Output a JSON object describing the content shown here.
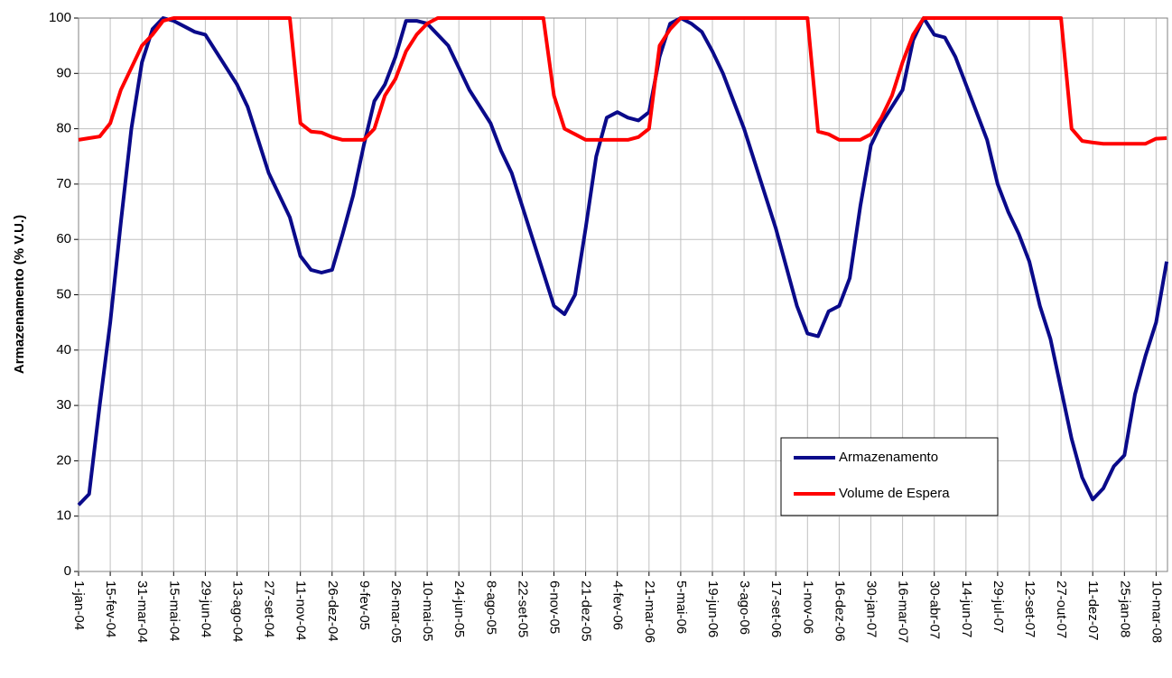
{
  "chart_data": {
    "type": "line",
    "y_label": "Armazenamento (% V.U.)",
    "categories": [
      "1-jan-04",
      null,
      null,
      "15-fev-04",
      null,
      null,
      "31-mar-04",
      null,
      null,
      "15-mai-04",
      null,
      null,
      "29-jun-04",
      null,
      null,
      "13-ago-04",
      null,
      null,
      "27-set-04",
      null,
      null,
      "11-nov-04",
      null,
      null,
      "26-dez-04",
      null,
      null,
      "9-fev-05",
      null,
      null,
      "26-mar-05",
      null,
      null,
      "10-mai-05",
      null,
      null,
      "24-jun-05",
      null,
      null,
      "8-ago-05",
      null,
      null,
      "22-set-05",
      null,
      null,
      "6-nov-05",
      null,
      null,
      "21-dez-05",
      null,
      null,
      "4-fev-06",
      null,
      null,
      "21-mar-06",
      null,
      null,
      "5-mai-06",
      null,
      null,
      "19-jun-06",
      null,
      null,
      "3-ago-06",
      null,
      null,
      "17-set-06",
      null,
      null,
      "1-nov-06",
      null,
      null,
      "16-dez-06",
      null,
      null,
      "30-jan-07",
      null,
      null,
      "16-mar-07",
      null,
      null,
      "30-abr-07",
      null,
      null,
      "14-jun-07",
      null,
      null,
      "29-jul-07",
      null,
      null,
      "12-set-07",
      null,
      null,
      "27-out-07",
      null,
      null,
      "11-dez-07",
      null,
      null,
      "25-jan-08",
      null,
      null,
      "10-mar-08",
      null
    ],
    "series": [
      {
        "name": "Armazenamento",
        "color": "#0a0a8a",
        "values": [
          12,
          14,
          30,
          45,
          63,
          80,
          92,
          98,
          100,
          99.5,
          98.5,
          97.5,
          97,
          94,
          91,
          88,
          84,
          78,
          72,
          68,
          64,
          57,
          54.5,
          54,
          54.5,
          61,
          68,
          77,
          85,
          88,
          93,
          99.5,
          99.5,
          99,
          97,
          95,
          91,
          87,
          84,
          81,
          76,
          72,
          66,
          60,
          54,
          48,
          46.5,
          50,
          62,
          75,
          82,
          83,
          82,
          81.5,
          83,
          93,
          99,
          100,
          99,
          97.5,
          94,
          90,
          85,
          80,
          74,
          68,
          62,
          55,
          48,
          43,
          42.5,
          47,
          48,
          53,
          66,
          77,
          81,
          84,
          87,
          96,
          100,
          97,
          96.5,
          93,
          88,
          83,
          78,
          70,
          65,
          61,
          56,
          48,
          42,
          33,
          24,
          17,
          13,
          15,
          19,
          21,
          32,
          39,
          45,
          56
        ]
      },
      {
        "name": "Volume de Espera",
        "color": "#ff0000",
        "values": [
          78,
          78.3,
          78.6,
          81,
          87,
          91,
          95,
          97,
          99.5,
          100,
          100,
          100,
          100,
          100,
          100,
          100,
          100,
          100,
          100,
          100,
          100,
          81,
          79.5,
          79.3,
          78.5,
          78,
          78,
          78,
          80,
          86,
          89,
          94,
          97,
          99,
          100,
          100,
          100,
          100,
          100,
          100,
          100,
          100,
          100,
          100,
          100,
          86,
          80,
          79,
          78,
          78,
          78,
          78,
          78,
          78.5,
          80,
          95,
          98,
          100,
          100,
          100,
          100,
          100,
          100,
          100,
          100,
          100,
          100,
          100,
          100,
          100,
          79.5,
          79,
          78,
          78,
          78,
          79,
          82,
          86,
          92,
          97,
          100,
          100,
          100,
          100,
          100,
          100,
          100,
          100,
          100,
          100,
          100,
          100,
          100,
          100,
          80,
          77.8,
          77.5,
          77.3,
          77.3,
          77.3,
          77.3,
          77.3,
          78.2,
          78.3
        ]
      }
    ],
    "ylim": [
      0,
      100
    ],
    "yticks": [
      0,
      10,
      20,
      30,
      40,
      50,
      60,
      70,
      80,
      90,
      100
    ],
    "grid": true
  }
}
